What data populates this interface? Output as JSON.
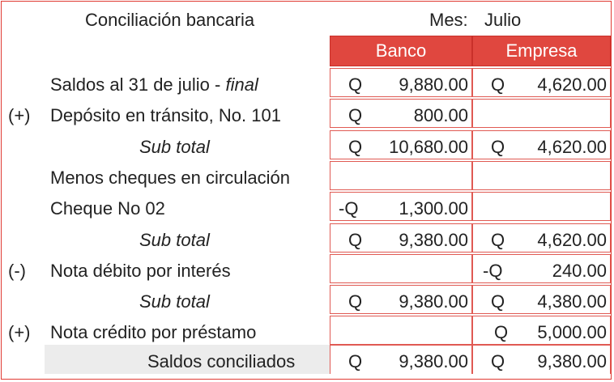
{
  "title": "Conciliación bancaria",
  "month_label": "Mes:",
  "month_value": "Julio",
  "columns": {
    "bank": "Banco",
    "company": "Empresa"
  },
  "rows": [
    {
      "prefix": "",
      "label": "Saldos al 31 de julio - ",
      "label_italic": "final",
      "indent": false,
      "bank_cur": "Q",
      "bank_amt": "9,880.00",
      "comp_cur": "Q",
      "comp_amt": "4,620.00"
    },
    {
      "prefix": "(+)",
      "label": "Depósito en tránsito, No. 101",
      "label_italic": "",
      "indent": false,
      "bank_cur": "Q",
      "bank_amt": "800.00",
      "comp_cur": "",
      "comp_amt": ""
    },
    {
      "prefix": "",
      "label": "",
      "label_italic": "Sub total",
      "indent": true,
      "bank_cur": "Q",
      "bank_amt": "10,680.00",
      "comp_cur": "Q",
      "comp_amt": "4,620.00"
    },
    {
      "prefix": "",
      "label": "Menos cheques en circulación",
      "label_italic": "",
      "indent": false,
      "bank_cur": "",
      "bank_amt": "",
      "comp_cur": "",
      "comp_amt": ""
    },
    {
      "prefix": "",
      "label": "Cheque No 02",
      "label_italic": "",
      "indent": false,
      "bank_cur": "-Q",
      "bank_amt": "1,300.00",
      "comp_cur": "",
      "comp_amt": ""
    },
    {
      "prefix": "",
      "label": "",
      "label_italic": "Sub total",
      "indent": true,
      "bank_cur": "Q",
      "bank_amt": "9,380.00",
      "comp_cur": "Q",
      "comp_amt": "4,620.00"
    },
    {
      "prefix": "(-)",
      "label": "Nota débito por interés",
      "label_italic": "",
      "indent": false,
      "bank_cur": "",
      "bank_amt": "",
      "comp_cur": "-Q",
      "comp_amt": "240.00"
    },
    {
      "prefix": "",
      "label": "",
      "label_italic": "Sub total",
      "indent": true,
      "bank_cur": "Q",
      "bank_amt": "9,380.00",
      "comp_cur": "Q",
      "comp_amt": "4,380.00"
    },
    {
      "prefix": "(+)",
      "label": "Nota crédito por préstamo",
      "label_italic": "",
      "indent": false,
      "bank_cur": "",
      "bank_amt": "",
      "comp_cur": "Q",
      "comp_amt": "5,000.00"
    }
  ],
  "total": {
    "label": "Saldos conciliados",
    "bank_cur": "Q",
    "bank_amt": "9,380.00",
    "comp_cur": "Q",
    "comp_amt": "9,380.00"
  }
}
